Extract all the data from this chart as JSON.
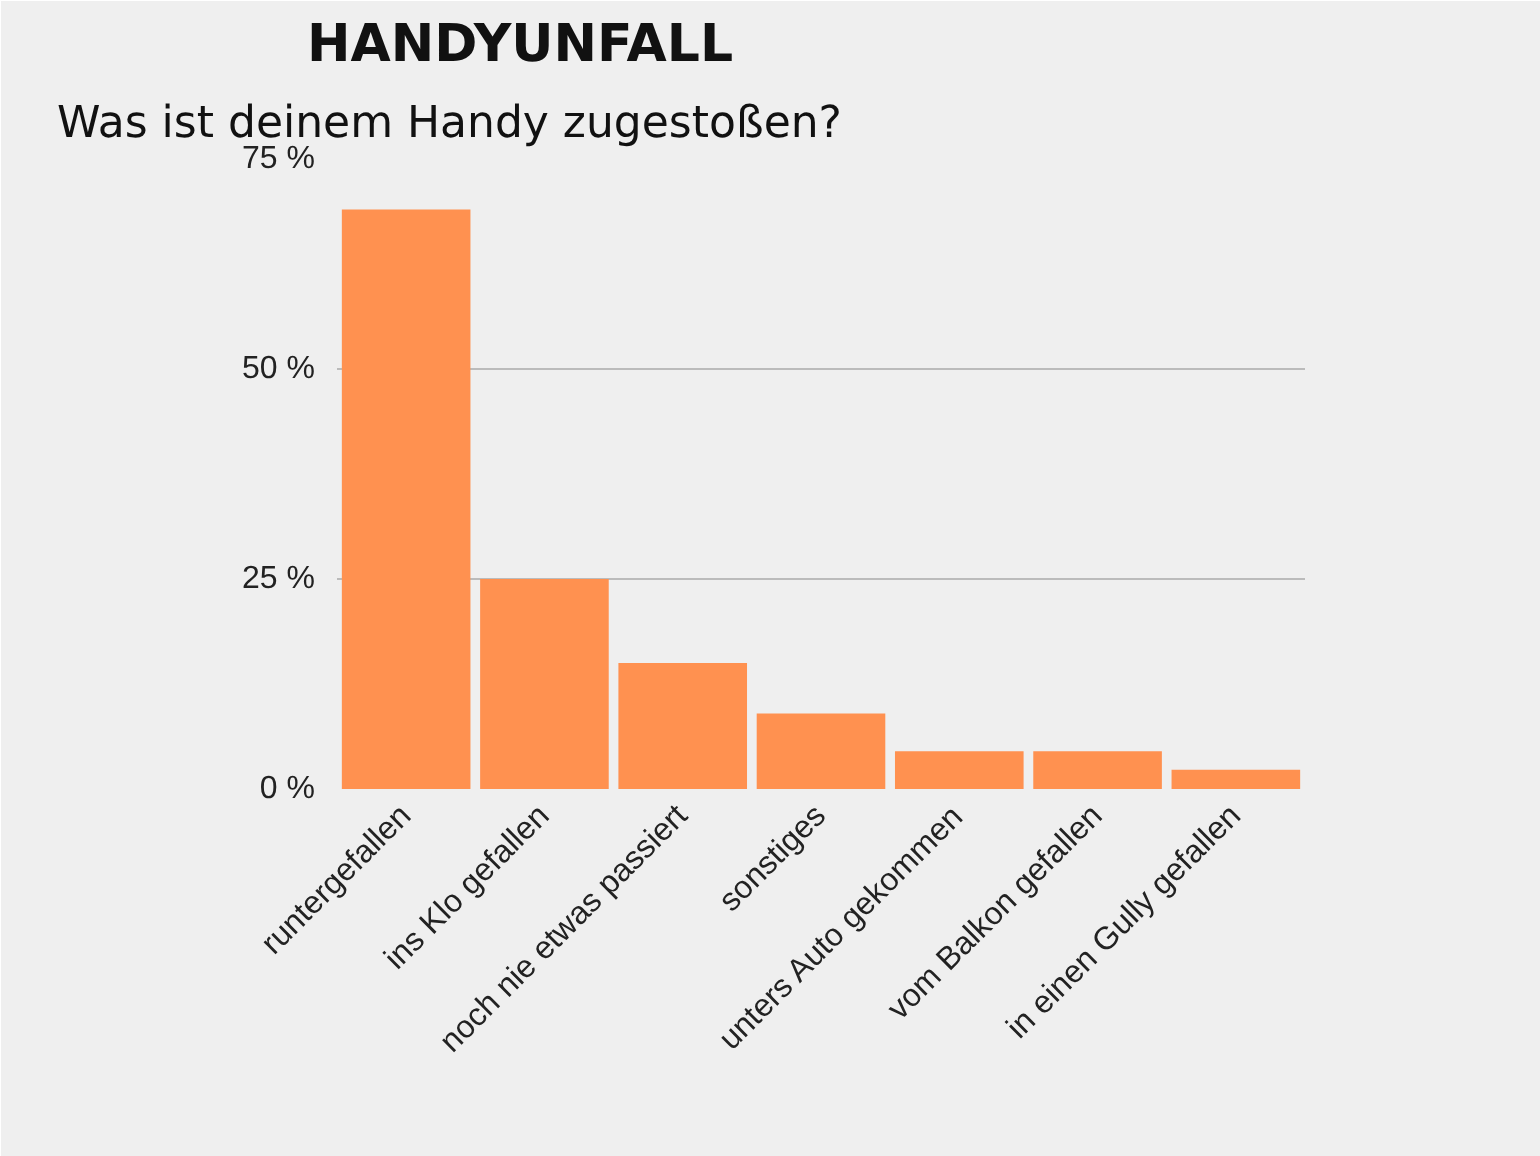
{
  "chart_data": {
    "type": "bar",
    "title": "HANDYUNFALL",
    "subtitle": "Was ist deinem Handy zugestoßen?",
    "categories": [
      "runtergefallen",
      "ins Klo gefallen",
      "noch nie etwas passiert",
      "sonstiges",
      "unters Auto gekommen",
      "vom Balkon gefallen",
      "in einen Gully gefallen"
    ],
    "values": [
      69,
      25,
      15,
      9,
      4.5,
      4.5,
      2.3
    ],
    "color": "#ff9150",
    "ylim": [
      0,
      75
    ],
    "yticks": [
      {
        "value": 0,
        "label": "0 %"
      },
      {
        "value": 25,
        "label": "25 %"
      },
      {
        "value": 50,
        "label": "50 %"
      },
      {
        "value": 75,
        "label": "75 %"
      }
    ],
    "grid": "y"
  }
}
